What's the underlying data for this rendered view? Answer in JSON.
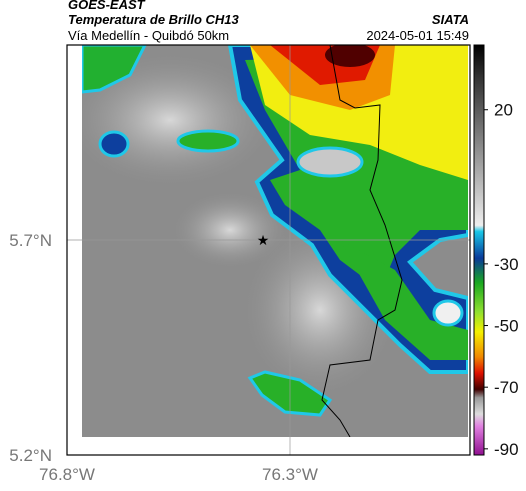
{
  "header": {
    "title": "GOES-EAST",
    "subtitle": "Temperatura de Brillo CH13",
    "agency": "SIATA",
    "route": "Vía Medellín - Quibdó 50km",
    "datetime": "2024-05-01 15:49"
  },
  "map": {
    "lat_labels": [
      "5.7°N",
      "5.2°N"
    ],
    "lon_labels": [
      "76.8°W",
      "76.3°W"
    ]
  },
  "colorbar": {
    "lim": [
      -92,
      41
    ],
    "ticks": [
      20,
      -30,
      -50,
      -70,
      -90
    ]
  }
}
